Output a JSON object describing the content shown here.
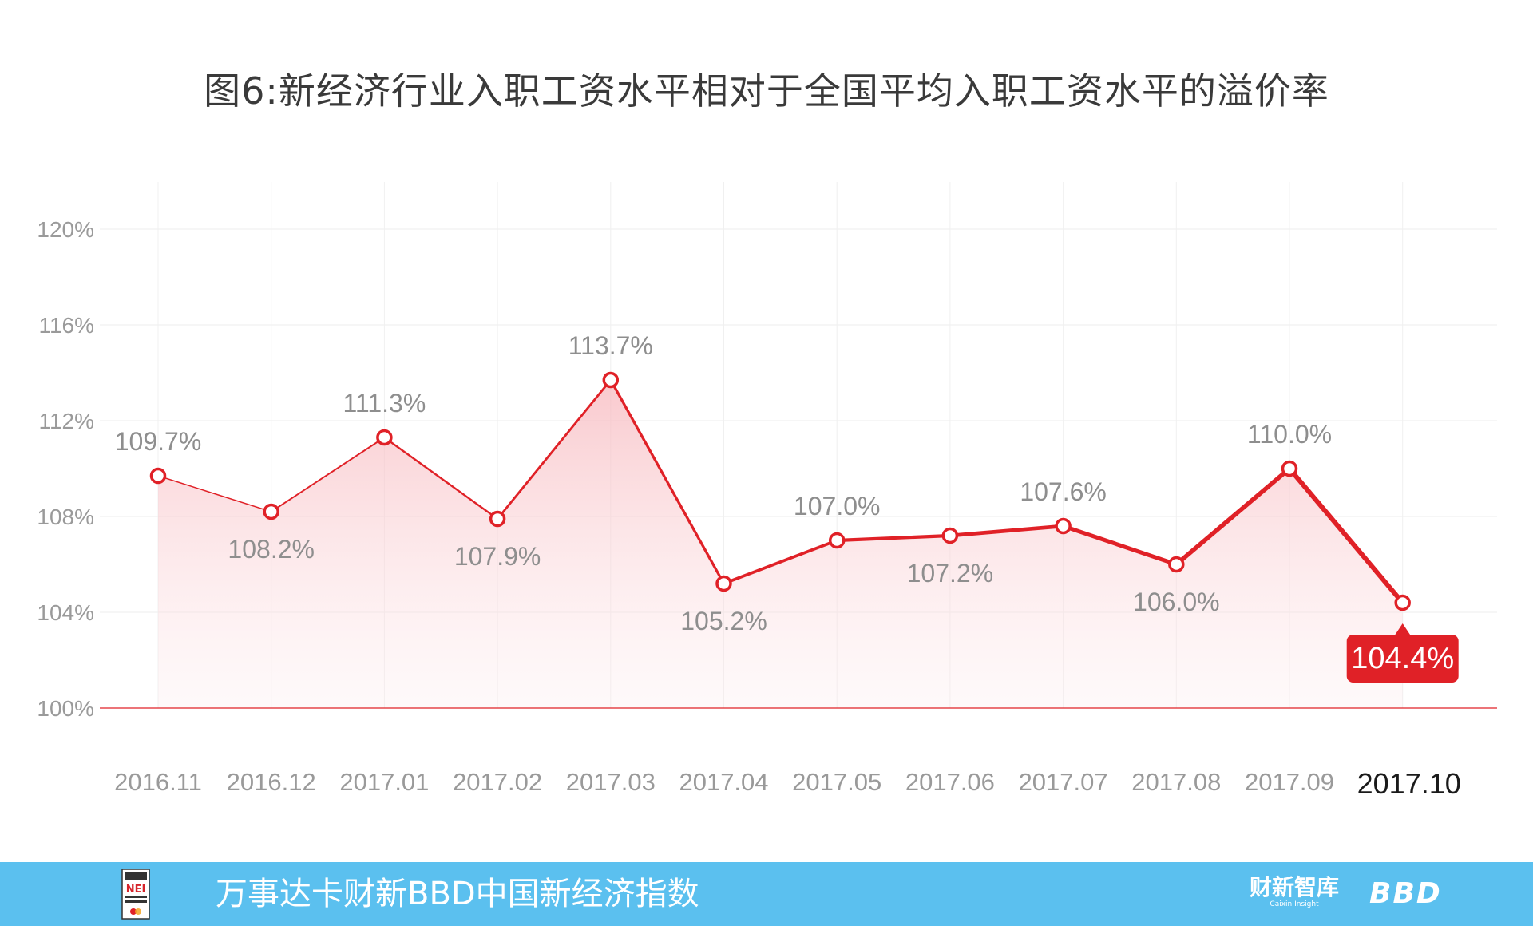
{
  "title": "图6:新经济行业入职工资水平相对于全国平均入职工资水平的溢价率",
  "chart_data": {
    "type": "line",
    "categories": [
      "2016.11",
      "2016.12",
      "2017.01",
      "2017.02",
      "2017.03",
      "2017.04",
      "2017.05",
      "2017.06",
      "2017.07",
      "2017.08",
      "2017.09",
      "2017.10"
    ],
    "values": [
      109.7,
      108.2,
      111.3,
      107.9,
      113.7,
      105.2,
      107.0,
      107.2,
      107.6,
      106.0,
      110.0,
      104.4
    ],
    "data_labels": [
      "109.7%",
      "108.2%",
      "111.3%",
      "107.9%",
      "113.7%",
      "105.2%",
      "107.0%",
      "107.2%",
      "107.6%",
      "106.0%",
      "110.0%",
      "104.4%"
    ],
    "highlight_index": 11,
    "ylim": [
      100,
      120
    ],
    "yticks": [
      100,
      104,
      108,
      112,
      116,
      120
    ],
    "ytick_labels": [
      "100%",
      "104%",
      "108%",
      "112%",
      "116%",
      "120%"
    ],
    "xlabel": "",
    "ylabel": "",
    "grid": true,
    "colors": {
      "line": "#e02127",
      "fill": "#fbd9dc",
      "highlight_bg": "#e02127",
      "baseline": "#e02127"
    }
  },
  "footer": {
    "text": "万事达卡财新BBD中国新经济指数",
    "logo_text": "NEI",
    "brand1_cn": "财新智库",
    "brand1_en": "Caixin Insight",
    "brand2": "BBD",
    "bg_color": "#5bc0ef"
  }
}
